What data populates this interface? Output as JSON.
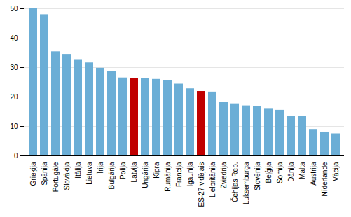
{
  "chart_data": {
    "type": "bar",
    "categories": [
      "Grieķija",
      "Spānija",
      "Portugāle",
      "Slovākija",
      "Itālija",
      "Lietuva",
      "Īrija",
      "Bulgārija",
      "Polija",
      "Latvija",
      "Ungārija",
      "Kipra",
      "Rumānija",
      "Francija",
      "Igaunija",
      "ES-27 vidējais",
      "Lielbritānija",
      "Zviedrija",
      "Čehijas Rep.",
      "Luksemburga",
      "Slovēnija",
      "Beļģija",
      "Somija",
      "Dānija",
      "Malta",
      "Austrija",
      "Nīderlande",
      "Vācija"
    ],
    "values": [
      50.0,
      48.0,
      35.4,
      34.5,
      32.5,
      31.6,
      29.8,
      28.8,
      26.5,
      26.2,
      26.3,
      26.0,
      25.5,
      24.4,
      22.8,
      21.9,
      21.7,
      18.2,
      17.7,
      17.0,
      16.7,
      16.1,
      15.5,
      13.4,
      13.5,
      9.0,
      8.1,
      7.5
    ],
    "colors": [
      "#6baed6",
      "#6baed6",
      "#6baed6",
      "#6baed6",
      "#6baed6",
      "#6baed6",
      "#6baed6",
      "#6baed6",
      "#6baed6",
      "#c00000",
      "#6baed6",
      "#6baed6",
      "#6baed6",
      "#6baed6",
      "#6baed6",
      "#c00000",
      "#6baed6",
      "#6baed6",
      "#6baed6",
      "#6baed6",
      "#6baed6",
      "#6baed6",
      "#6baed6",
      "#6baed6",
      "#6baed6",
      "#6baed6",
      "#6baed6",
      "#6baed6"
    ],
    "ylim": [
      0,
      50
    ],
    "yticks": [
      0,
      10,
      20,
      30,
      40,
      50
    ],
    "grid": true
  }
}
